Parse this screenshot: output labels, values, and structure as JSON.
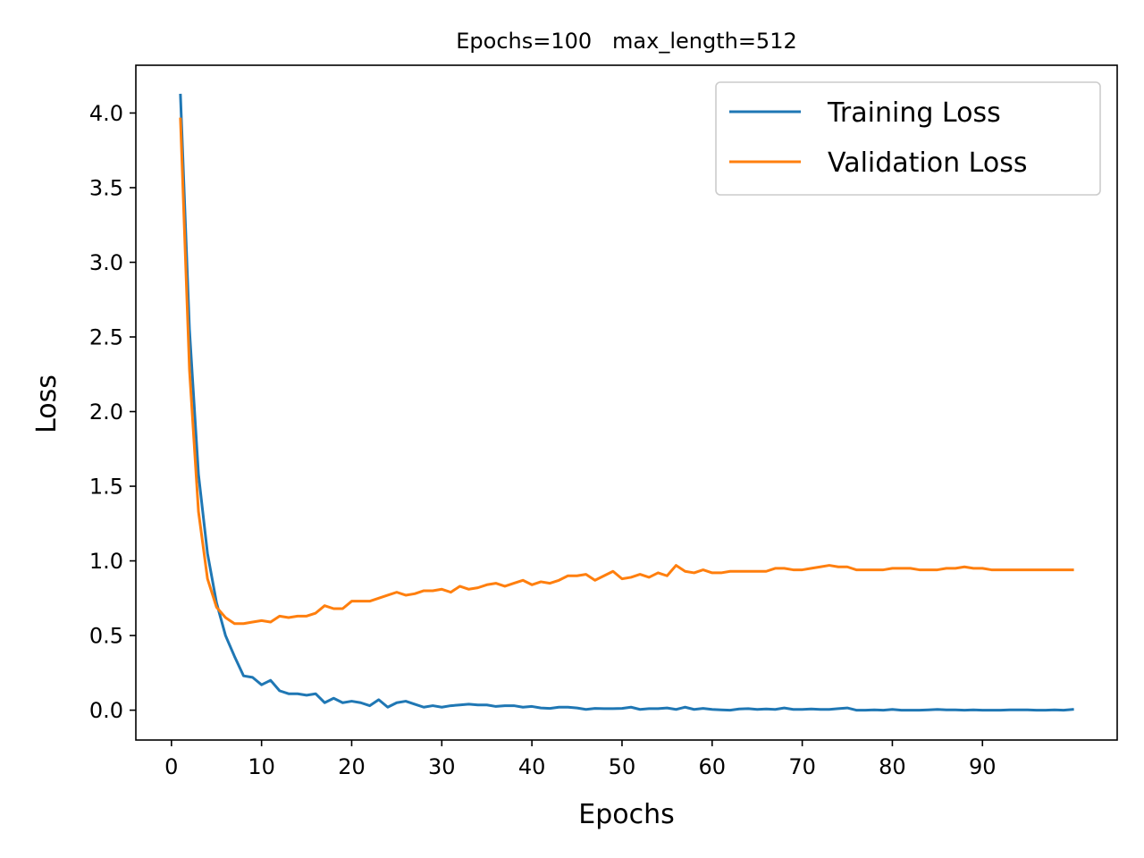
{
  "chart_data": {
    "type": "line",
    "title": "Epochs=100   max_length=512",
    "xlabel": "Epochs",
    "ylabel": "Loss",
    "xlim": [
      -3.95,
      104.95
    ],
    "ylim": [
      -0.2,
      4.32
    ],
    "xticks": [
      0,
      10,
      20,
      30,
      40,
      50,
      60,
      70,
      80,
      90
    ],
    "yticks": [
      0.0,
      0.5,
      1.0,
      1.5,
      2.0,
      2.5,
      3.0,
      3.5,
      4.0
    ],
    "ytick_labels": [
      "0.0",
      "0.5",
      "1.0",
      "1.5",
      "2.0",
      "2.5",
      "3.0",
      "3.5",
      "4.0"
    ],
    "legend_position": "upper-right",
    "x": [
      1,
      2,
      3,
      4,
      5,
      6,
      7,
      8,
      9,
      10,
      11,
      12,
      13,
      14,
      15,
      16,
      17,
      18,
      19,
      20,
      21,
      22,
      23,
      24,
      25,
      26,
      27,
      28,
      29,
      30,
      31,
      32,
      33,
      34,
      35,
      36,
      37,
      38,
      39,
      40,
      41,
      42,
      43,
      44,
      45,
      46,
      47,
      48,
      49,
      50,
      51,
      52,
      53,
      54,
      55,
      56,
      57,
      58,
      59,
      60,
      61,
      62,
      63,
      64,
      65,
      66,
      67,
      68,
      69,
      70,
      71,
      72,
      73,
      74,
      75,
      76,
      77,
      78,
      79,
      80,
      81,
      82,
      83,
      84,
      85,
      86,
      87,
      88,
      89,
      90,
      91,
      92,
      93,
      94,
      95,
      96,
      97,
      98,
      99,
      100
    ],
    "series": [
      {
        "name": "Training Loss",
        "color": "#1f77b4",
        "values": [
          4.12,
          2.55,
          1.58,
          1.05,
          0.72,
          0.5,
          0.36,
          0.23,
          0.22,
          0.17,
          0.2,
          0.13,
          0.11,
          0.11,
          0.1,
          0.11,
          0.05,
          0.08,
          0.05,
          0.06,
          0.05,
          0.03,
          0.07,
          0.02,
          0.05,
          0.06,
          0.04,
          0.02,
          0.03,
          0.02,
          0.03,
          0.035,
          0.04,
          0.035,
          0.035,
          0.025,
          0.03,
          0.03,
          0.02,
          0.025,
          0.015,
          0.012,
          0.02,
          0.02,
          0.015,
          0.005,
          0.012,
          0.01,
          0.01,
          0.012,
          0.02,
          0.005,
          0.01,
          0.01,
          0.015,
          0.005,
          0.02,
          0.005,
          0.012,
          0.005,
          0.002,
          0.0,
          0.008,
          0.01,
          0.005,
          0.008,
          0.005,
          0.015,
          0.005,
          0.005,
          0.008,
          0.005,
          0.005,
          0.01,
          0.015,
          0.0,
          0.0,
          0.002,
          0.0,
          0.005,
          0.0,
          0.0,
          0.0,
          0.002,
          0.005,
          0.002,
          0.002,
          0.0,
          0.002,
          0.0,
          0.0,
          0.0,
          0.002,
          0.002,
          0.002,
          0.0,
          0.0,
          0.002,
          0.0,
          0.005
        ]
      },
      {
        "name": "Validation Loss",
        "color": "#ff7f0e",
        "values": [
          3.96,
          2.28,
          1.33,
          0.88,
          0.69,
          0.62,
          0.58,
          0.58,
          0.59,
          0.6,
          0.59,
          0.63,
          0.62,
          0.63,
          0.63,
          0.65,
          0.7,
          0.68,
          0.68,
          0.73,
          0.73,
          0.73,
          0.75,
          0.77,
          0.79,
          0.77,
          0.78,
          0.8,
          0.8,
          0.81,
          0.79,
          0.83,
          0.81,
          0.82,
          0.84,
          0.85,
          0.83,
          0.85,
          0.87,
          0.84,
          0.86,
          0.85,
          0.87,
          0.9,
          0.9,
          0.91,
          0.87,
          0.9,
          0.93,
          0.88,
          0.89,
          0.91,
          0.89,
          0.92,
          0.9,
          0.97,
          0.93,
          0.92,
          0.94,
          0.92,
          0.92,
          0.93,
          0.93,
          0.93,
          0.93,
          0.93,
          0.95,
          0.95,
          0.94,
          0.94,
          0.95,
          0.96,
          0.97,
          0.96,
          0.96,
          0.94,
          0.94,
          0.94,
          0.94,
          0.95,
          0.95,
          0.95,
          0.94,
          0.94,
          0.94,
          0.95,
          0.95,
          0.96,
          0.95,
          0.95,
          0.94,
          0.94,
          0.94,
          0.94,
          0.94,
          0.94,
          0.94,
          0.94,
          0.94,
          0.94
        ]
      }
    ]
  }
}
